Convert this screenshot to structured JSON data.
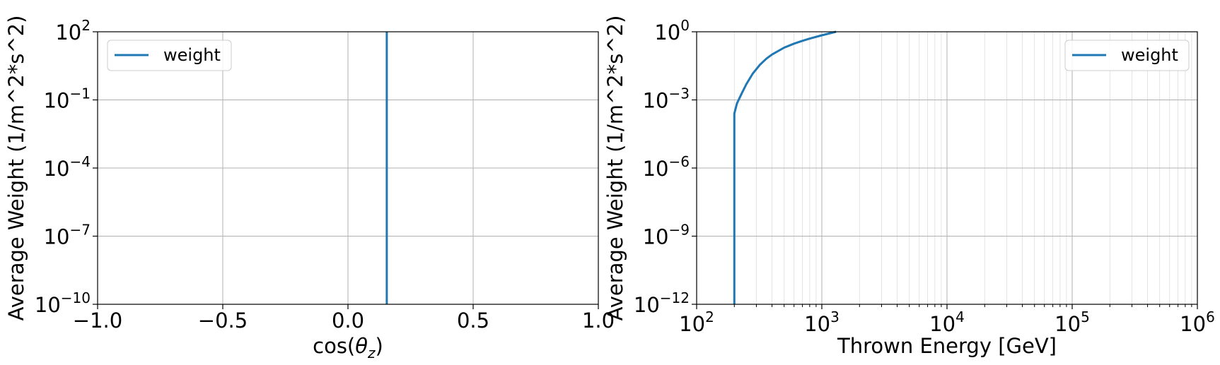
{
  "chart_data": [
    {
      "type": "line",
      "xscale": "linear",
      "yscale": "log",
      "xlabel_prefix": "cos(",
      "xlabel_symbol": "θ",
      "xlabel_subscript": "z",
      "xlabel_suffix": ")",
      "ylabel": "Average Weight (1/m^2*s^2)",
      "xlim": [
        -1.0,
        1.0
      ],
      "ylim_exp": [
        -10,
        2
      ],
      "grid": true,
      "legend_position": "upper-left",
      "xticks": [
        {
          "value": -1.0,
          "label": "−1.0"
        },
        {
          "value": -0.5,
          "label": "−0.5"
        },
        {
          "value": 0.0,
          "label": "0.0"
        },
        {
          "value": 0.5,
          "label": "0.5"
        },
        {
          "value": 1.0,
          "label": "1.0"
        }
      ],
      "yticks": [
        {
          "exp": 2,
          "base": "10",
          "sup": "2"
        },
        {
          "exp": -1,
          "base": "10",
          "sup": "−1"
        },
        {
          "exp": -4,
          "base": "10",
          "sup": "−4"
        },
        {
          "exp": -7,
          "base": "10",
          "sup": "−7"
        },
        {
          "exp": -10,
          "base": "10",
          "sup": "−10"
        }
      ],
      "series": [
        {
          "name": "weight",
          "color": "#1f77b4",
          "x": [
            0.155,
            0.155
          ],
          "y_exp": [
            -10,
            2
          ]
        }
      ]
    },
    {
      "type": "line",
      "xscale": "log",
      "yscale": "log",
      "xlabel": "Thrown Energy [GeV]",
      "ylabel": "Average Weight (1/m^2*s^2)",
      "xlim_exp": [
        2,
        6
      ],
      "ylim_exp": [
        -12,
        0
      ],
      "grid": true,
      "legend_position": "upper-right",
      "xticks": [
        {
          "exp": 2,
          "base": "10",
          "sup": "2"
        },
        {
          "exp": 3,
          "base": "10",
          "sup": "3"
        },
        {
          "exp": 4,
          "base": "10",
          "sup": "4"
        },
        {
          "exp": 5,
          "base": "10",
          "sup": "5"
        },
        {
          "exp": 6,
          "base": "10",
          "sup": "6"
        }
      ],
      "yticks": [
        {
          "exp": 0,
          "base": "10",
          "sup": "0"
        },
        {
          "exp": -3,
          "base": "10",
          "sup": "−3"
        },
        {
          "exp": -6,
          "base": "10",
          "sup": "−6"
        },
        {
          "exp": -9,
          "base": "10",
          "sup": "−9"
        },
        {
          "exp": -12,
          "base": "10",
          "sup": "−12"
        }
      ],
      "series": [
        {
          "name": "weight",
          "color": "#1f77b4",
          "x": [
            200,
            200,
            210,
            230,
            250,
            280,
            320,
            360,
            400,
            500,
            600,
            700,
            800,
            1000,
            1200,
            1300
          ],
          "y": [
            1e-12,
            0.00025,
            0.0007,
            0.002,
            0.005,
            0.014,
            0.035,
            0.065,
            0.1,
            0.2,
            0.3,
            0.4,
            0.5,
            0.7,
            0.9,
            1.0
          ]
        }
      ]
    }
  ]
}
